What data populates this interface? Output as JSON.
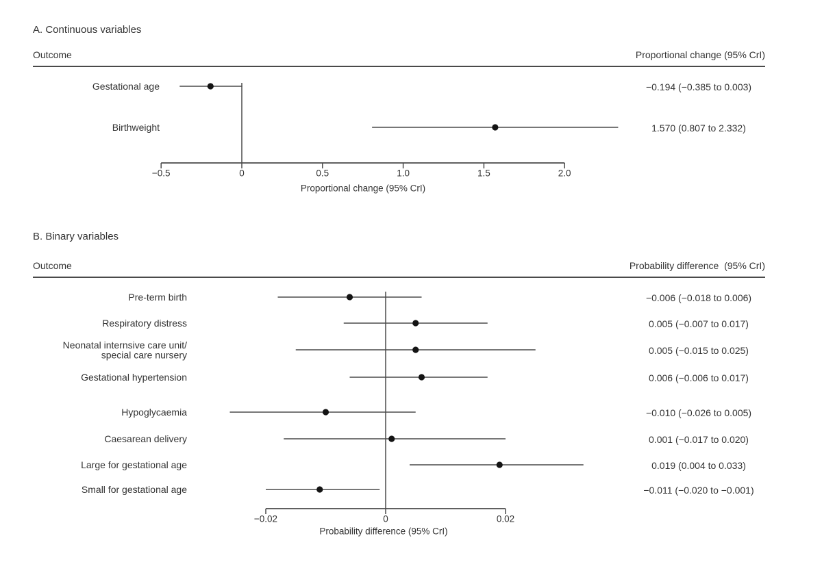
{
  "figure": {
    "background": "#ffffff",
    "text_color": "#333333",
    "line_color": "#4a4a4a",
    "point_color": "#141414"
  },
  "chart_data": [
    {
      "type": "scatter",
      "variant": "forest-plot",
      "panel_title": "A. Continuous variables",
      "outcome_header": "Outcome",
      "value_header": "Proportional change (95% CrI)",
      "xlabel": "Proportional change (95% CrI)",
      "xlim": [
        -0.5,
        2.0
      ],
      "reference_x": 0,
      "xticks": [
        {
          "value": -0.5,
          "label": "−0.5"
        },
        {
          "value": 0,
          "label": "0"
        },
        {
          "value": 0.5,
          "label": "0.5"
        },
        {
          "value": 1.0,
          "label": "1.0"
        },
        {
          "value": 1.5,
          "label": "1.5"
        },
        {
          "value": 2.0,
          "label": "2.0"
        }
      ],
      "rows": [
        {
          "label_lines": [
            "Gestational age"
          ],
          "estimate": -0.194,
          "ci_lower": -0.385,
          "ci_upper": 0.003,
          "value_text": "−0.194 (−0.385 to 0.003)"
        },
        {
          "label_lines": [
            "Birthweight"
          ],
          "estimate": 1.57,
          "ci_lower": 0.807,
          "ci_upper": 2.332,
          "value_text": "1.570 (0.807 to 2.332)"
        }
      ]
    },
    {
      "type": "scatter",
      "variant": "forest-plot",
      "panel_title": "B. Binary variables",
      "outcome_header": "Outcome",
      "value_header": "Probability difference  (95% CrI)",
      "xlabel": "Probability difference (95% CrI)",
      "xlim": [
        -0.02,
        0.02
      ],
      "reference_x": 0,
      "xticks": [
        {
          "value": -0.02,
          "label": "−0.02"
        },
        {
          "value": 0,
          "label": "0"
        },
        {
          "value": 0.02,
          "label": "0.02"
        }
      ],
      "rows": [
        {
          "label_lines": [
            "Pre-term birth"
          ],
          "estimate": -0.006,
          "ci_lower": -0.018,
          "ci_upper": 0.006,
          "value_text": "−0.006 (−0.018 to 0.006)"
        },
        {
          "label_lines": [
            "Respiratory distress"
          ],
          "estimate": 0.005,
          "ci_lower": -0.007,
          "ci_upper": 0.017,
          "value_text": "0.005 (−0.007 to 0.017)"
        },
        {
          "label_lines": [
            "Neonatal internsive care unit/",
            "special care nursery"
          ],
          "estimate": 0.005,
          "ci_lower": -0.015,
          "ci_upper": 0.025,
          "value_text": "0.005 (−0.015 to 0.025)"
        },
        {
          "label_lines": [
            "Gestational hypertension"
          ],
          "estimate": 0.006,
          "ci_lower": -0.006,
          "ci_upper": 0.017,
          "value_text": "0.006 (−0.006 to 0.017)"
        },
        {
          "label_lines": [
            "Hypoglycaemia"
          ],
          "estimate": -0.01,
          "ci_lower": -0.026,
          "ci_upper": 0.005,
          "value_text": "−0.010 (−0.026 to 0.005)"
        },
        {
          "label_lines": [
            "Caesarean delivery"
          ],
          "estimate": 0.001,
          "ci_lower": -0.017,
          "ci_upper": 0.02,
          "value_text": "0.001 (−0.017 to 0.020)"
        },
        {
          "label_lines": [
            "Large for gestational age"
          ],
          "estimate": 0.019,
          "ci_lower": 0.004,
          "ci_upper": 0.033,
          "value_text": "0.019 (0.004 to 0.033)"
        },
        {
          "label_lines": [
            "Small for gestational age"
          ],
          "estimate": -0.011,
          "ci_lower": -0.02,
          "ci_upper": -0.001,
          "value_text": "−0.011 (−0.020 to −0.001)"
        }
      ]
    }
  ]
}
